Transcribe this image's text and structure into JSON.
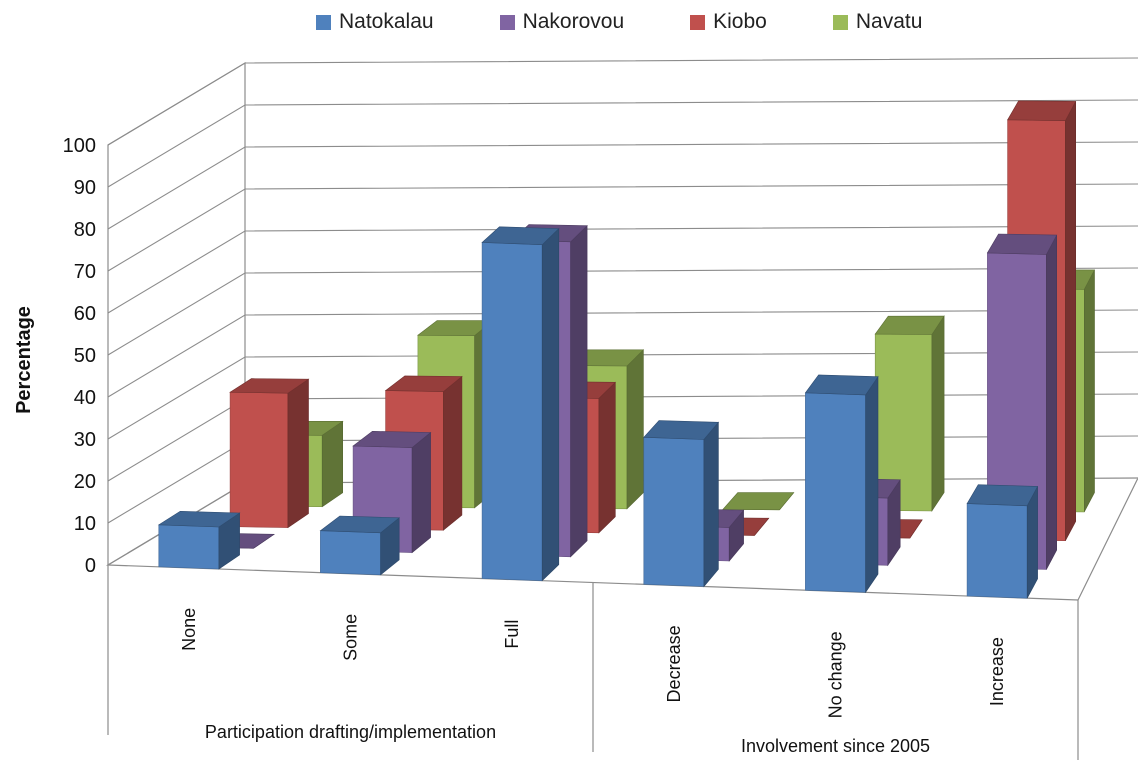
{
  "chart_data": {
    "type": "bar",
    "subtype": "3d-clustered-column",
    "ylabel": "Percentage",
    "ylim": [
      0,
      100
    ],
    "yticks": [
      "0",
      "10",
      "20",
      "30",
      "40",
      "50",
      "60",
      "70",
      "80",
      "90",
      "100"
    ],
    "grid": true,
    "legend_position": "top",
    "groups": [
      {
        "label": "Participation drafting/implementation",
        "categories": [
          "None",
          "Some",
          "Full"
        ]
      },
      {
        "label": "Involvement since 2005",
        "categories": [
          "Decrease",
          "No change",
          "Increase"
        ]
      }
    ],
    "categories": [
      "None",
      "Some",
      "Full",
      "Decrease",
      "No change",
      "Increase"
    ],
    "series": [
      {
        "name": "Natokalau",
        "color": "#4F81BD",
        "values": [
          10,
          10,
          80,
          35,
          47,
          22
        ]
      },
      {
        "name": "Nakorovou",
        "color": "#8064A2",
        "values": [
          0,
          25,
          75,
          8,
          16,
          75
        ]
      },
      {
        "name": "Kiobo",
        "color": "#C0504D",
        "values": [
          32,
          33,
          32,
          0,
          0,
          100
        ]
      },
      {
        "name": "Navatu",
        "color": "#9BBB59",
        "values": [
          17,
          41,
          34,
          0,
          42,
          53
        ]
      }
    ]
  }
}
